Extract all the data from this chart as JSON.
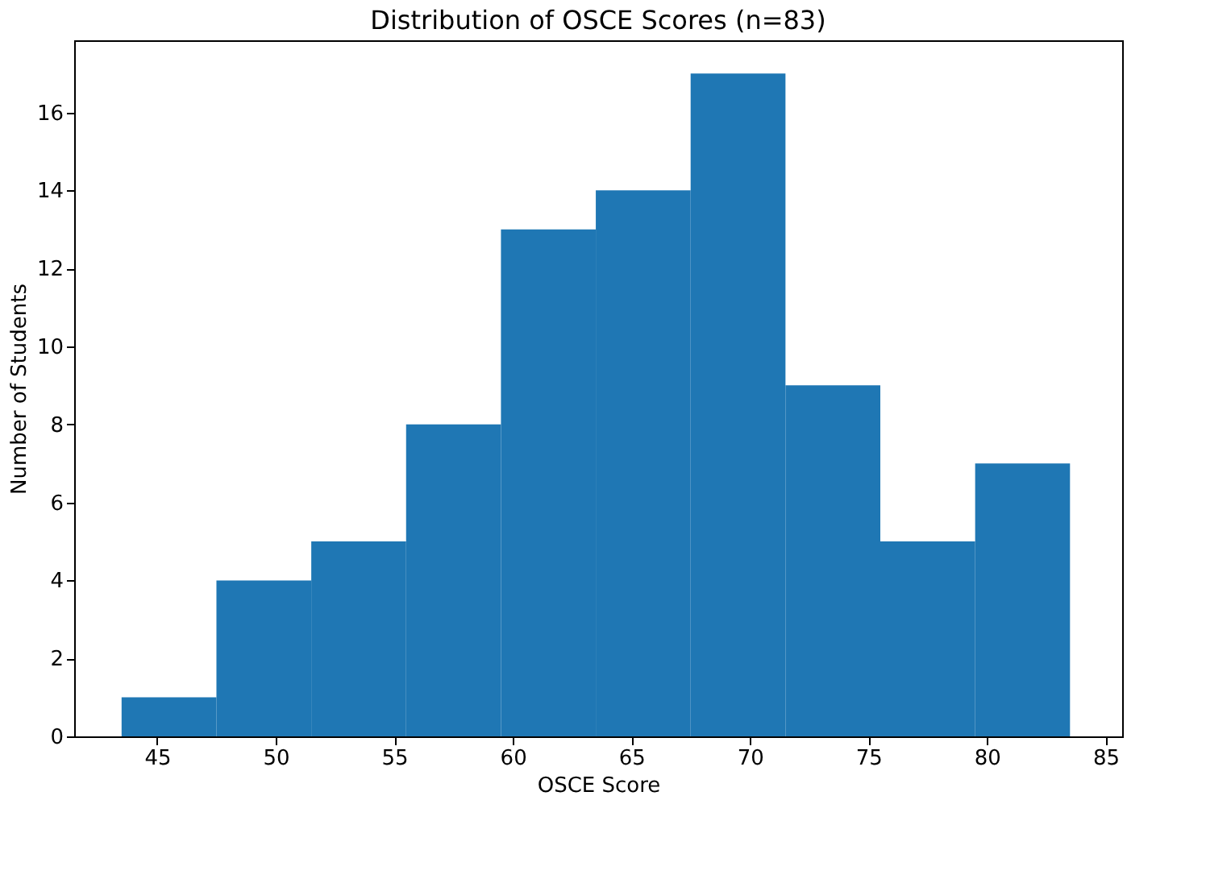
{
  "chart_data": {
    "type": "histogram",
    "title": "Distribution of OSCE Scores (n=83)",
    "xlabel": "OSCE Score",
    "ylabel": "Number of Students",
    "bins": [
      43.5,
      47.5,
      51.5,
      55.5,
      59.5,
      63.5,
      67.5,
      71.5,
      75.5,
      79.5,
      83.5
    ],
    "values": [
      1,
      4,
      5,
      8,
      13,
      14,
      17,
      9,
      5,
      7
    ],
    "color": "#1f77b4",
    "xlim": [
      41.5,
      85.7
    ],
    "xticks": [
      45,
      50,
      55,
      60,
      65,
      70,
      75,
      80,
      85
    ],
    "ylim": [
      0,
      17.85
    ],
    "yticks": [
      0,
      2,
      4,
      6,
      8,
      10,
      12,
      14,
      16
    ],
    "grid": false
  }
}
